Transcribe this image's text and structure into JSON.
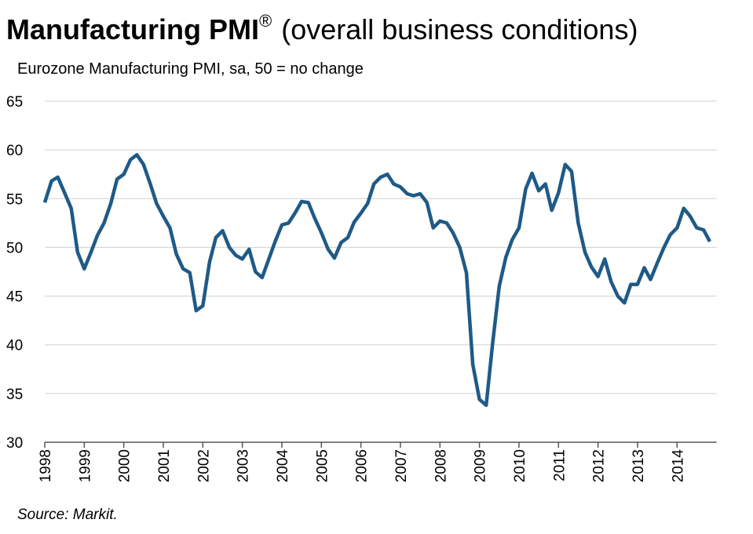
{
  "chart_data": {
    "type": "line",
    "title": "Manufacturing PMI",
    "title_symbol": "®",
    "title_suffix": "(overall business conditions)",
    "subtitle": "Eurozone Manufacturing PMI, sa, 50 = no change",
    "source": "Source: Markit.",
    "x": [
      1998,
      1998.17,
      1998.33,
      1998.5,
      1998.67,
      1998.83,
      1999,
      1999.17,
      1999.33,
      1999.5,
      1999.67,
      1999.83,
      2000,
      2000.17,
      2000.33,
      2000.5,
      2000.67,
      2000.83,
      2001,
      2001.17,
      2001.33,
      2001.5,
      2001.67,
      2001.83,
      2002,
      2002.17,
      2002.33,
      2002.5,
      2002.67,
      2002.83,
      2003,
      2003.17,
      2003.33,
      2003.5,
      2003.67,
      2003.83,
      2004,
      2004.17,
      2004.33,
      2004.5,
      2004.67,
      2004.83,
      2005,
      2005.17,
      2005.33,
      2005.5,
      2005.67,
      2005.83,
      2006,
      2006.17,
      2006.33,
      2006.5,
      2006.67,
      2006.83,
      2007,
      2007.17,
      2007.33,
      2007.5,
      2007.67,
      2007.83,
      2008,
      2008.17,
      2008.33,
      2008.5,
      2008.67,
      2008.83,
      2009,
      2009.17,
      2009.33,
      2009.5,
      2009.67,
      2009.83,
      2010,
      2010.17,
      2010.33,
      2010.5,
      2010.67,
      2010.83,
      2011,
      2011.17,
      2011.33,
      2011.5,
      2011.67,
      2011.83,
      2012,
      2012.17,
      2012.33,
      2012.5,
      2012.67,
      2012.83,
      2013,
      2013.17,
      2013.33,
      2013.5,
      2013.67,
      2013.83,
      2014,
      2014.17,
      2014.33,
      2014.5,
      2014.67,
      2014.83
    ],
    "series": [
      {
        "color": "#1f5a87",
        "values": [
          54.6,
          56.8,
          57.2,
          55.6,
          54,
          49.5,
          47.8,
          49.5,
          51.2,
          52.5,
          54.5,
          57,
          57.5,
          59,
          59.5,
          58.5,
          56.5,
          54.5,
          53.2,
          52,
          49.3,
          47.8,
          47.4,
          43.5,
          44,
          48.5,
          51,
          51.7,
          50,
          49.2,
          48.8,
          49.8,
          47.5,
          46.9,
          48.8,
          50.6,
          52.3,
          52.5,
          53.5,
          54.7,
          54.6,
          53,
          51.5,
          49.8,
          48.9,
          50.5,
          51,
          52.6,
          53.5,
          54.5,
          56.5,
          57.2,
          57.5,
          56.5,
          56.2,
          55.5,
          55.3,
          55.5,
          54.6,
          52,
          52.7,
          52.5,
          51.5,
          50,
          47.4,
          38,
          34.4,
          33.8,
          40,
          46,
          49,
          50.8,
          52,
          56,
          57.6,
          55.8,
          56.5,
          53.8,
          55.6,
          58.5,
          57.8,
          52.5,
          49.5,
          48,
          47,
          48.8,
          46.5,
          45,
          44.3,
          46.2,
          46.2,
          47.9,
          46.7,
          48.4,
          50,
          51.3,
          52,
          54,
          53.2,
          52,
          51.8,
          50.6
        ]
      }
    ],
    "xlim": [
      1998,
      2015
    ],
    "xticks": [
      1998,
      1999,
      2000,
      2001,
      2002,
      2003,
      2004,
      2005,
      2006,
      2007,
      2008,
      2009,
      2010,
      2011,
      2012,
      2013,
      2014
    ],
    "ylim": [
      30,
      65
    ],
    "yticks": [
      30,
      35,
      40,
      45,
      50,
      55,
      60,
      65
    ],
    "grid": true
  }
}
